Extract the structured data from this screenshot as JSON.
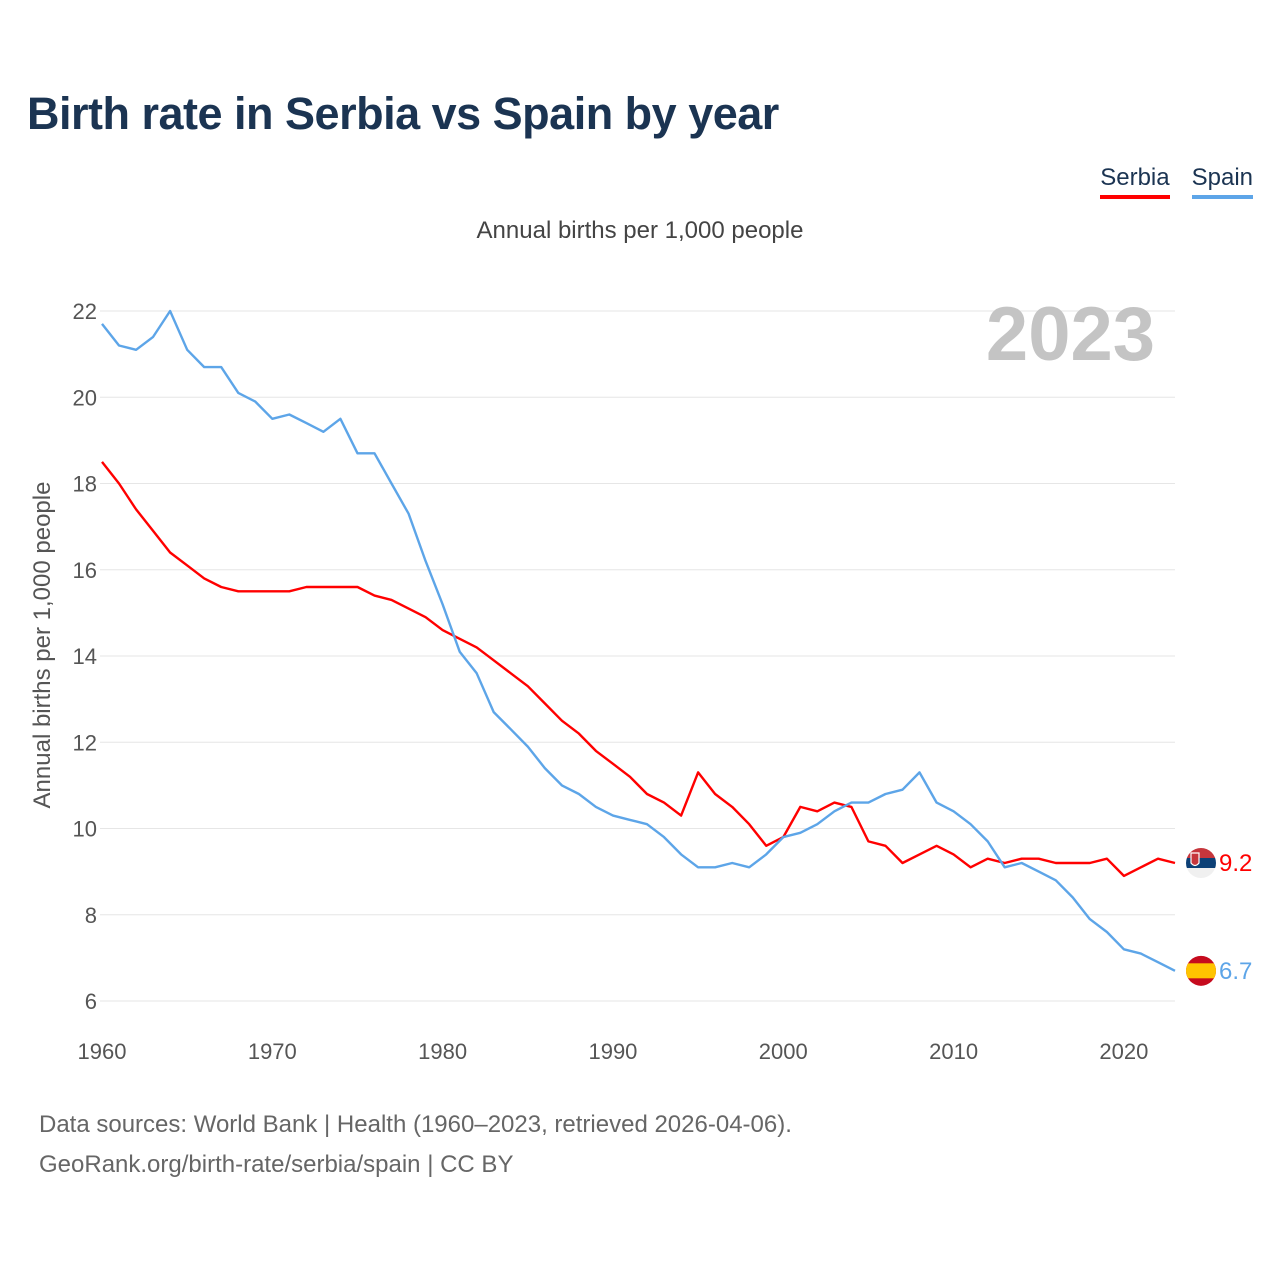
{
  "title": "Birth rate in Serbia vs Spain by year",
  "legend": {
    "serbia": "Serbia",
    "spain": "Spain"
  },
  "footer": {
    "line1": "Data sources: World Bank | Health (1960–2023, retrieved 2026-04-06).",
    "line2": "GeoRank.org/birth-rate/serbia/spain | CC BY"
  },
  "colors": {
    "serbia": "#ff0000",
    "spain": "#5da5e8",
    "grid": "#e6e6e6",
    "year_watermark": "#c4c4c4"
  },
  "chart_data": {
    "type": "line",
    "title": "Annual births per 1,000 people",
    "ylabel": "Annual births per 1,000 people",
    "xlabel": "",
    "year_label": "2023",
    "xlim": [
      1960,
      2023
    ],
    "ylim": [
      6,
      22
    ],
    "x_ticks": [
      1960,
      1970,
      1980,
      1990,
      2000,
      2010,
      2020
    ],
    "y_ticks": [
      6,
      8,
      10,
      12,
      14,
      16,
      18,
      20,
      22
    ],
    "x": [
      1960,
      1961,
      1962,
      1963,
      1964,
      1965,
      1966,
      1967,
      1968,
      1969,
      1970,
      1971,
      1972,
      1973,
      1974,
      1975,
      1976,
      1977,
      1978,
      1979,
      1980,
      1981,
      1982,
      1983,
      1984,
      1985,
      1986,
      1987,
      1988,
      1989,
      1990,
      1991,
      1992,
      1993,
      1994,
      1995,
      1996,
      1997,
      1998,
      1999,
      2000,
      2001,
      2002,
      2003,
      2004,
      2005,
      2006,
      2007,
      2008,
      2009,
      2010,
      2011,
      2012,
      2013,
      2014,
      2015,
      2016,
      2017,
      2018,
      2019,
      2020,
      2021,
      2022,
      2023
    ],
    "series": [
      {
        "name": "Serbia",
        "end_label": "9.2",
        "values": [
          18.5,
          18.0,
          17.4,
          16.9,
          16.4,
          16.1,
          15.8,
          15.6,
          15.5,
          15.5,
          15.5,
          15.5,
          15.6,
          15.6,
          15.6,
          15.6,
          15.4,
          15.3,
          15.1,
          14.9,
          14.6,
          14.4,
          14.2,
          13.9,
          13.6,
          13.3,
          12.9,
          12.5,
          12.2,
          11.8,
          11.5,
          11.2,
          10.8,
          10.6,
          10.3,
          11.3,
          10.8,
          10.5,
          10.1,
          9.6,
          9.8,
          10.5,
          10.4,
          10.6,
          10.5,
          9.7,
          9.6,
          9.2,
          9.4,
          9.6,
          9.4,
          9.1,
          9.3,
          9.2,
          9.3,
          9.3,
          9.2,
          9.2,
          9.2,
          9.3,
          8.9,
          9.1,
          9.3,
          9.2
        ]
      },
      {
        "name": "Spain",
        "end_label": "6.7",
        "values": [
          21.7,
          21.2,
          21.1,
          21.4,
          22.0,
          21.1,
          20.7,
          20.7,
          20.1,
          19.9,
          19.5,
          19.6,
          19.4,
          19.2,
          19.5,
          18.7,
          18.7,
          18.0,
          17.3,
          16.2,
          15.2,
          14.1,
          13.6,
          12.7,
          12.3,
          11.9,
          11.4,
          11.0,
          10.8,
          10.5,
          10.3,
          10.2,
          10.1,
          9.8,
          9.4,
          9.1,
          9.1,
          9.2,
          9.1,
          9.4,
          9.8,
          9.9,
          10.1,
          10.4,
          10.6,
          10.6,
          10.8,
          10.9,
          11.3,
          10.6,
          10.4,
          10.1,
          9.7,
          9.1,
          9.2,
          9.0,
          8.8,
          8.4,
          7.9,
          7.6,
          7.2,
          7.1,
          6.9,
          6.7
        ]
      }
    ]
  }
}
